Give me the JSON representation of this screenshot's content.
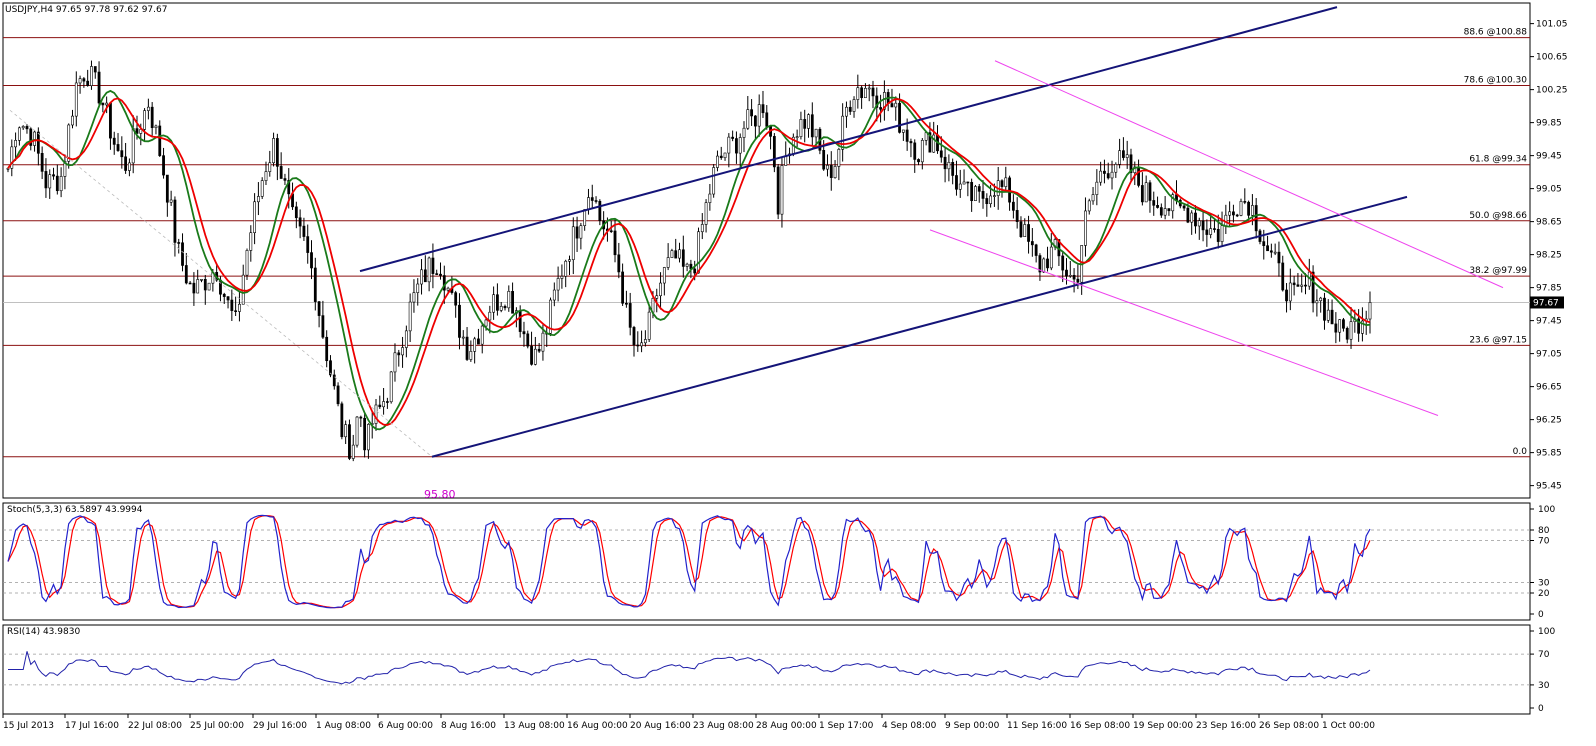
{
  "chart_data": [
    {
      "type": "candlestick",
      "title": "USDJPY,H4  97.65 97.78 97.62 97.67",
      "price_axis": {
        "range": [
          95.3,
          101.3
        ],
        "ticks": [
          "101.05",
          "100.65",
          "100.25",
          "99.85",
          "99.45",
          "99.05",
          "98.65",
          "98.25",
          "97.85",
          "97.45",
          "97.05",
          "96.65",
          "96.25",
          "95.85",
          "95.45"
        ]
      },
      "current_price": "97.67",
      "fib_levels": [
        {
          "label": "88.6 @100.88",
          "value": 100.88
        },
        {
          "label": "78.6 @100.30",
          "value": 100.3
        },
        {
          "label": "61.8 @99.34",
          "value": 99.34
        },
        {
          "label": "50.0 @98.66",
          "value": 98.66
        },
        {
          "label": "38.2 @97.99",
          "value": 97.99
        },
        {
          "label": "23.6 @97.15",
          "value": 97.15
        },
        {
          "label": "0.0",
          "value": 95.8
        }
      ],
      "low_annotation": "95.80",
      "x_axis_labels": [
        "15 Jul 2013",
        "17 Jul 16:00",
        "22 Jul 08:00",
        "25 Jul 00:00",
        "29 Jul 16:00",
        "1 Aug 08:00",
        "6 Aug 00:00",
        "8 Aug 16:00",
        "13 Aug 08:00",
        "16 Aug 00:00",
        "20 Aug 16:00",
        "23 Aug 08:00",
        "28 Aug 00:00",
        "1 Sep 17:00",
        "4 Sep 08:00",
        "9 Sep 00:00",
        "11 Sep 16:00",
        "16 Sep 08:00",
        "19 Sep 00:00",
        "23 Sep 16:00",
        "26 Sep 08:00",
        "1 Oct 00:00"
      ],
      "bars": 360,
      "close_path": [
        [
          0,
          99.3
        ],
        [
          4,
          99.9
        ],
        [
          10,
          99.7
        ],
        [
          16,
          99.1
        ],
        [
          22,
          99.2
        ],
        [
          28,
          100.3
        ],
        [
          32,
          100.5
        ],
        [
          38,
          100.2
        ],
        [
          44,
          99.6
        ],
        [
          48,
          99.3
        ],
        [
          54,
          99.8
        ],
        [
          58,
          100.1
        ],
        [
          62,
          99.6
        ],
        [
          66,
          99.0
        ],
        [
          70,
          98.3
        ],
        [
          76,
          97.8
        ],
        [
          80,
          97.9
        ],
        [
          86,
          98.1
        ],
        [
          90,
          97.7
        ],
        [
          94,
          97.4
        ],
        [
          98,
          98.2
        ],
        [
          102,
          98.8
        ],
        [
          106,
          99.3
        ],
        [
          110,
          99.6
        ],
        [
          114,
          99.1
        ],
        [
          118,
          98.6
        ],
        [
          122,
          98.4
        ],
        [
          126,
          98.0
        ],
        [
          130,
          97.3
        ],
        [
          134,
          96.7
        ],
        [
          138,
          96.1
        ],
        [
          142,
          95.9
        ],
        [
          145,
          96.4
        ],
        [
          148,
          95.9
        ],
        [
          150,
          96.2
        ],
        [
          154,
          96.4
        ],
        [
          158,
          96.7
        ],
        [
          162,
          97.2
        ],
        [
          166,
          97.6
        ],
        [
          170,
          97.9
        ],
        [
          174,
          98.1
        ],
        [
          178,
          98.2
        ],
        [
          182,
          97.8
        ],
        [
          186,
          97.4
        ],
        [
          190,
          97.1
        ],
        [
          194,
          97.3
        ],
        [
          198,
          97.6
        ],
        [
          202,
          97.7
        ],
        [
          206,
          97.8
        ],
        [
          210,
          97.6
        ],
        [
          214,
          97.2
        ],
        [
          218,
          97.0
        ],
        [
          222,
          97.3
        ],
        [
          226,
          97.8
        ],
        [
          230,
          98.2
        ],
        [
          234,
          98.5
        ],
        [
          238,
          98.9
        ],
        [
          241,
          99.1
        ],
        [
          244,
          98.7
        ],
        [
          248,
          98.5
        ],
        [
          252,
          98.1
        ],
        [
          256,
          97.4
        ],
        [
          260,
          97.0
        ],
        [
          264,
          97.3
        ],
        [
          268,
          97.8
        ],
        [
          272,
          98.1
        ],
        [
          276,
          98.2
        ],
        [
          280,
          98.0
        ],
        [
          284,
          98.2
        ],
        [
          288,
          98.8
        ],
        [
          292,
          99.3
        ],
        [
          296,
          99.5
        ],
        [
          300,
          99.6
        ],
        [
          304,
          99.8
        ],
        [
          308,
          99.9
        ],
        [
          312,
          100.1
        ],
        [
          316,
          99.5
        ],
        [
          318,
          98.9
        ],
        [
          322,
          99.6
        ],
        [
          326,
          99.8
        ],
        [
          330,
          99.9
        ],
        [
          334,
          99.6
        ],
        [
          338,
          99.2
        ],
        [
          342,
          99.4
        ],
        [
          346,
          100.0
        ],
        [
          350,
          100.3
        ],
        [
          354,
          100.2
        ]
      ],
      "close_path_2": [
        [
          0,
          100.3
        ],
        [
          6,
          100.1
        ],
        [
          10,
          99.8
        ],
        [
          14,
          99.5
        ],
        [
          18,
          99.7
        ],
        [
          22,
          99.3
        ],
        [
          26,
          99.0
        ],
        [
          30,
          98.9
        ],
        [
          34,
          99.1
        ],
        [
          38,
          99.0
        ],
        [
          42,
          98.5
        ],
        [
          46,
          98.1
        ],
        [
          50,
          98.3
        ],
        [
          54,
          98.0
        ],
        [
          56,
          97.9
        ],
        [
          58,
          98.6
        ],
        [
          62,
          99.2
        ],
        [
          66,
          99.4
        ],
        [
          70,
          99.3
        ],
        [
          74,
          99.0
        ],
        [
          78,
          98.9
        ],
        [
          82,
          98.8
        ],
        [
          86,
          98.8
        ],
        [
          90,
          98.6
        ],
        [
          94,
          98.5
        ],
        [
          98,
          98.9
        ],
        [
          102,
          98.9
        ],
        [
          106,
          98.4
        ],
        [
          110,
          98.0
        ],
        [
          114,
          97.7
        ],
        [
          118,
          97.9
        ],
        [
          122,
          97.6
        ],
        [
          126,
          97.3
        ],
        [
          130,
          97.4
        ],
        [
          134,
          97.67
        ]
      ],
      "moving_averages": [
        "fast (green)",
        "slow (red)"
      ],
      "channels": [
        "ascending (navy)",
        "descending (magenta)"
      ]
    },
    {
      "type": "line",
      "title": "Stoch(5,3,3) 63.5897 43.9994",
      "y_ticks": [
        "100",
        "80",
        "70",
        "30",
        "20",
        "0"
      ],
      "ylim": [
        0,
        100
      ],
      "series": [
        {
          "name": "%K",
          "color": "#2222cc"
        },
        {
          "name": "%D",
          "color": "#ff0000"
        }
      ]
    },
    {
      "type": "line",
      "title": "RSI(14) 43.9830",
      "y_ticks": [
        "100",
        "70",
        "30",
        "0"
      ],
      "ylim": [
        0,
        100
      ],
      "series": [
        {
          "name": "RSI",
          "color": "#2222aa"
        }
      ]
    }
  ]
}
